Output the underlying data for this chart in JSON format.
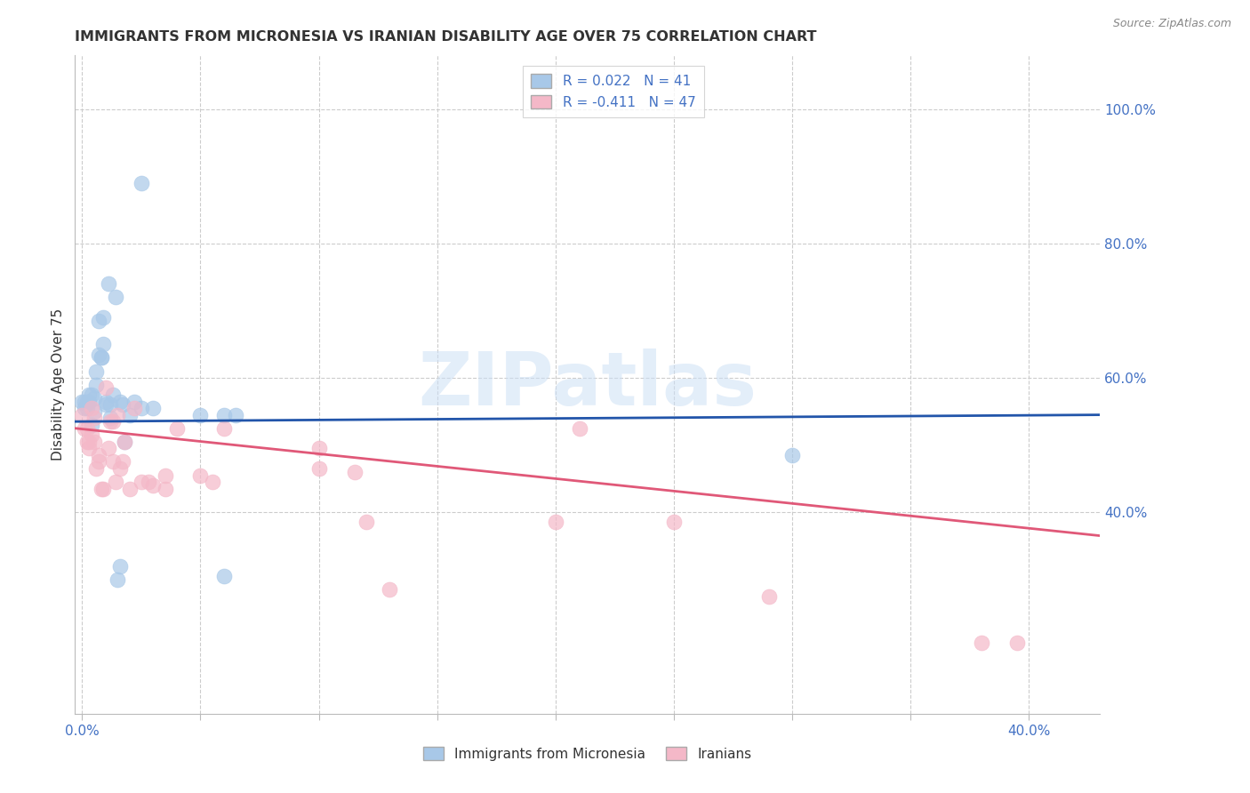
{
  "title": "IMMIGRANTS FROM MICRONESIA VS IRANIAN DISABILITY AGE OVER 75 CORRELATION CHART",
  "source": "Source: ZipAtlas.com",
  "tick_color": "#4472c4",
  "ylabel": "Disability Age Over 75",
  "xlim": [
    -0.003,
    0.43
  ],
  "ylim": [
    0.1,
    1.08
  ],
  "blue_color": "#a8c8e8",
  "pink_color": "#f4b8c8",
  "line_blue": "#2255aa",
  "line_pink": "#e05878",
  "background_color": "#ffffff",
  "grid_color": "#cccccc",
  "watermark": "ZIPatlas",
  "blue_x": [
    0.0,
    0.001,
    0.001,
    0.002,
    0.002,
    0.003,
    0.003,
    0.004,
    0.004,
    0.005,
    0.005,
    0.006,
    0.006,
    0.007,
    0.007,
    0.008,
    0.008,
    0.009,
    0.009,
    0.01,
    0.01,
    0.011,
    0.012,
    0.012,
    0.013,
    0.014,
    0.015,
    0.016,
    0.016,
    0.017,
    0.018,
    0.02,
    0.022,
    0.025,
    0.025,
    0.03,
    0.05,
    0.06,
    0.06,
    0.065,
    0.3
  ],
  "blue_y": [
    0.565,
    0.565,
    0.555,
    0.565,
    0.555,
    0.565,
    0.575,
    0.575,
    0.53,
    0.57,
    0.55,
    0.61,
    0.59,
    0.635,
    0.685,
    0.63,
    0.63,
    0.65,
    0.69,
    0.565,
    0.56,
    0.74,
    0.56,
    0.54,
    0.575,
    0.72,
    0.3,
    0.565,
    0.32,
    0.56,
    0.505,
    0.545,
    0.565,
    0.555,
    0.89,
    0.555,
    0.545,
    0.305,
    0.545,
    0.545,
    0.485
  ],
  "pink_x": [
    0.0,
    0.001,
    0.002,
    0.002,
    0.003,
    0.003,
    0.004,
    0.004,
    0.005,
    0.005,
    0.006,
    0.007,
    0.007,
    0.008,
    0.009,
    0.01,
    0.011,
    0.012,
    0.013,
    0.013,
    0.014,
    0.015,
    0.016,
    0.017,
    0.018,
    0.02,
    0.022,
    0.025,
    0.028,
    0.03,
    0.035,
    0.035,
    0.04,
    0.05,
    0.055,
    0.06,
    0.1,
    0.1,
    0.115,
    0.12,
    0.13,
    0.2,
    0.21,
    0.25,
    0.29,
    0.38,
    0.395
  ],
  "pink_y": [
    0.545,
    0.525,
    0.525,
    0.505,
    0.505,
    0.495,
    0.555,
    0.515,
    0.54,
    0.505,
    0.465,
    0.485,
    0.475,
    0.435,
    0.435,
    0.585,
    0.495,
    0.535,
    0.535,
    0.475,
    0.445,
    0.545,
    0.465,
    0.475,
    0.505,
    0.435,
    0.555,
    0.445,
    0.445,
    0.44,
    0.435,
    0.455,
    0.525,
    0.455,
    0.445,
    0.525,
    0.495,
    0.465,
    0.46,
    0.385,
    0.285,
    0.385,
    0.525,
    0.385,
    0.275,
    0.205,
    0.205
  ],
  "legend_r_label1": "R = 0.022   N = 41",
  "legend_r_label2": "R = -0.411   N = 47",
  "legend_bottom1": "Immigrants from Micronesia",
  "legend_bottom2": "Iranians"
}
